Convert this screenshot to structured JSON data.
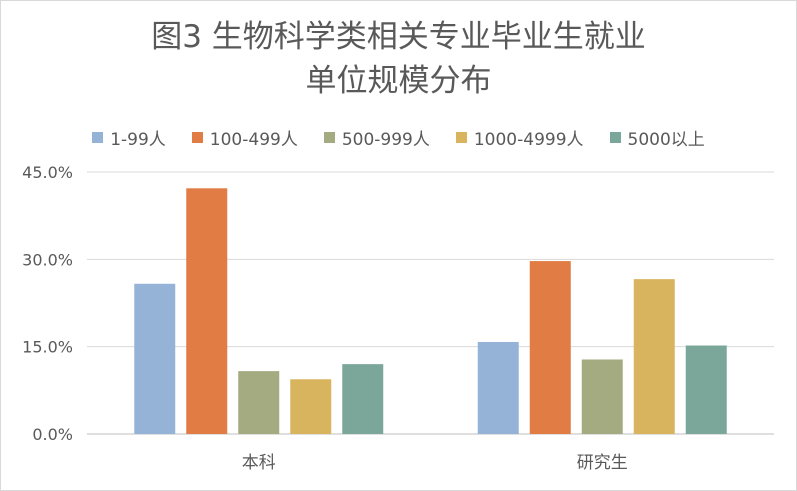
{
  "chart_data": {
    "type": "bar",
    "title_lines": [
      "图3 生物科学类相关专业毕业生就业",
      "单位规模分布"
    ],
    "categories": [
      "本科",
      "研究生"
    ],
    "series": [
      {
        "name": "1-99人",
        "color": "#95b3d7",
        "values": [
          25.8,
          15.8
        ]
      },
      {
        "name": "100-499人",
        "color": "#e07c44",
        "values": [
          42.2,
          29.7
        ]
      },
      {
        "name": "500-999人",
        "color": "#a5ab81",
        "values": [
          10.8,
          12.8
        ]
      },
      {
        "name": "1000-4999人",
        "color": "#d9b45f",
        "values": [
          9.4,
          26.6
        ]
      },
      {
        "name": "5000以上",
        "color": "#7aa79a",
        "values": [
          12.0,
          15.2
        ]
      }
    ],
    "ylim": [
      0,
      45
    ],
    "yticks": [
      0,
      15,
      30,
      45
    ],
    "ytick_labels": [
      "0.0%",
      "15.0%",
      "30.0%",
      "45.0%"
    ],
    "xlabel": "",
    "ylabel": "",
    "legend_position": "top",
    "grid": true
  }
}
